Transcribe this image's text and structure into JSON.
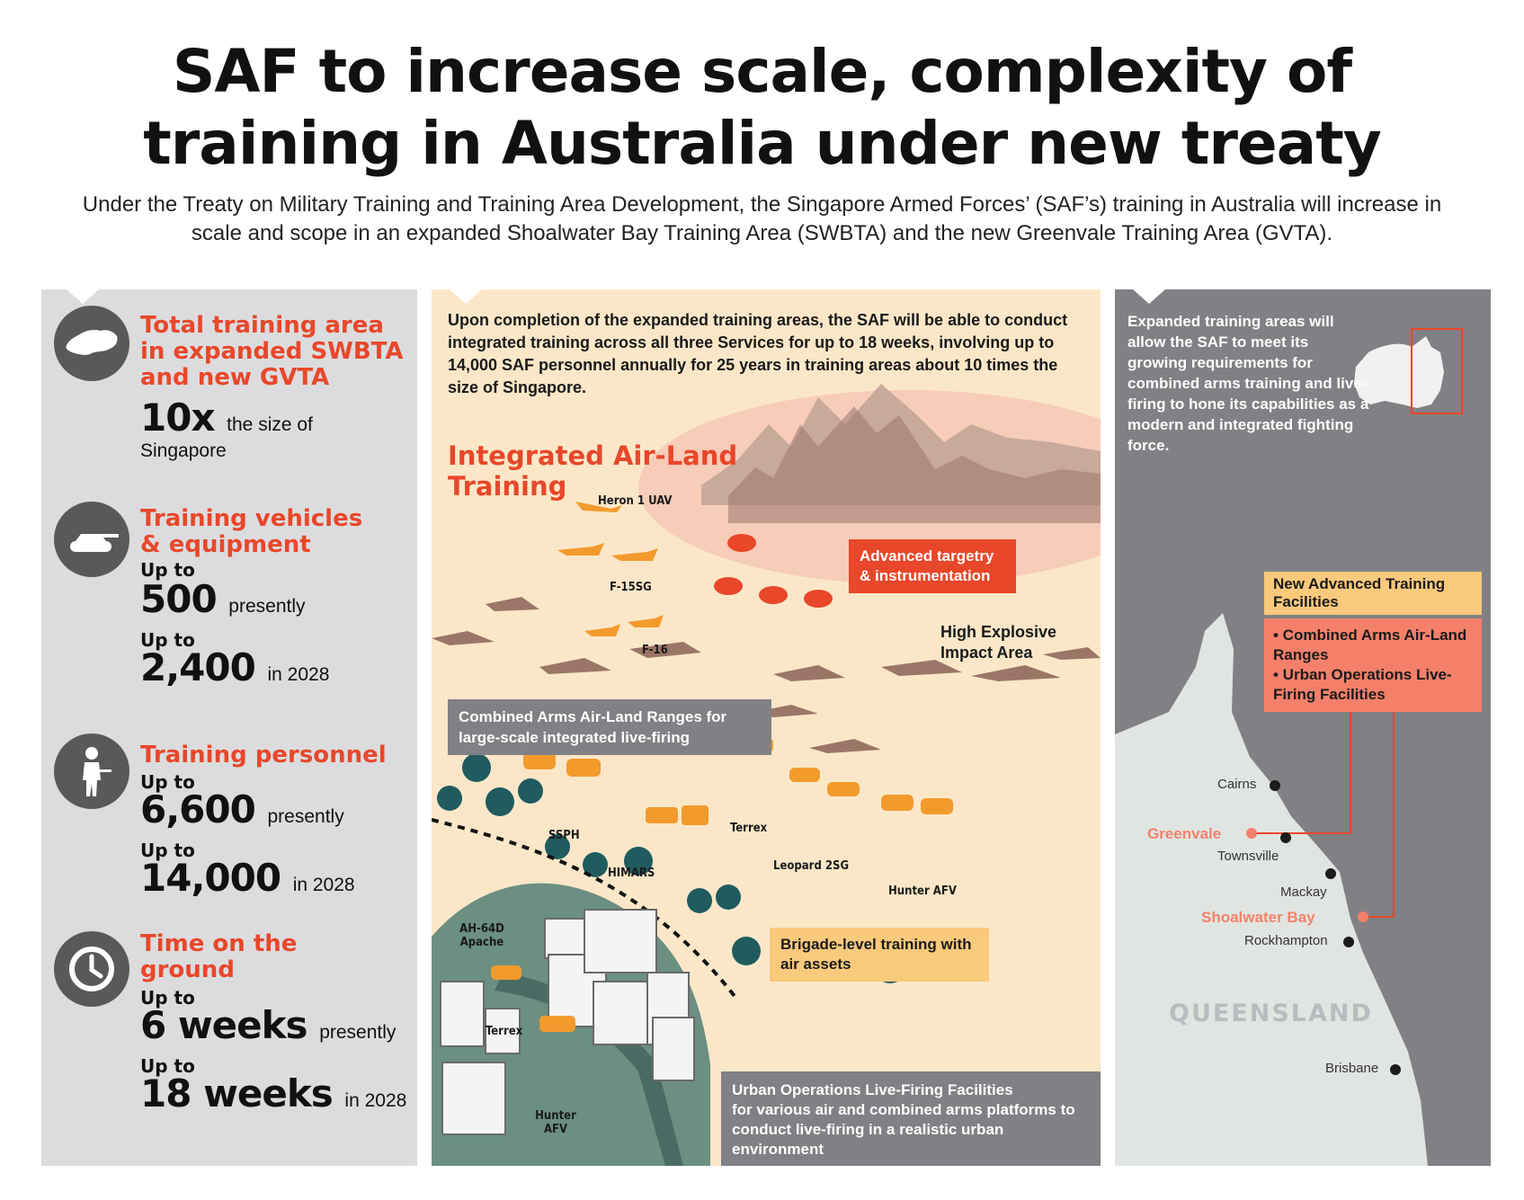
{
  "header": {
    "title_line1": "SAF to increase scale, complexity of",
    "title_line2": "training in Australia under new treaty",
    "subtitle": "Under the Treaty on Military Training and Training Area Development, the Singapore Armed Forces’ (SAF’s) training in Australia will increase in scale and scope in an expanded Shoalwater Bay Training Area (SWBTA) and the new Greenvale Training Area (GVTA)."
  },
  "stats": {
    "area": {
      "heading": "Total training area in expanded SWBTA and new GVTA",
      "value": "10x",
      "suffix": "the size of",
      "line2": "Singapore",
      "icon": "singapore-map-icon"
    },
    "vehicles": {
      "heading": "Training vehicles & equipment",
      "upto1": "Up to",
      "value1": "500",
      "suffix1": "presently",
      "upto2": "Up to",
      "value2": "2,400",
      "suffix2": "in 2028",
      "icon": "tank-icon"
    },
    "personnel": {
      "heading": "Training personnel",
      "upto1": "Up to",
      "value1": "6,600",
      "suffix1": "presently",
      "upto2": "Up to",
      "value2": "14,000",
      "suffix2": "in 2028",
      "icon": "soldier-icon"
    },
    "time": {
      "heading": "Time on the ground",
      "upto1": "Up to",
      "value1": "6 weeks",
      "suffix1": "presently",
      "upto2": "Up to",
      "value2": "18 weeks",
      "suffix2": "in 2028",
      "icon": "clock-icon"
    }
  },
  "middle": {
    "intro": "Upon completion of the expanded training areas, the SAF will be able to conduct integrated training across all three Services for up to 18 weeks, involving up to 14,000 SAF personnel annually for 25 years in training areas about 10 times the size of Singapore.",
    "heading": "Integrated Air-Land Training",
    "labels": {
      "heron": "Heron 1 UAV",
      "f15": "F-15SG",
      "f16": "F-16",
      "ssph": "SSPH",
      "himars": "HIMARS",
      "terrex1": "Terrex",
      "leopard": "Leopard 2SG",
      "hunter1": "Hunter AFV",
      "apache": "AH-64D Apache",
      "terrex2": "Terrex",
      "hunter2": "Hunter AFV",
      "hei": "High Explosive Impact Area"
    },
    "targetry_box": "Advanced targetry & instrumentation",
    "ranges_box": "Combined Arms Air-Land Ranges for large-scale integrated live-firing",
    "brigade_box": "Brigade-level training with air assets",
    "urban_box_title": "Urban Operations Live-Firing Facilities",
    "urban_box_body": "for various air and combined arms platforms to conduct live-firing in a realistic urban environment"
  },
  "right": {
    "intro": "Expanded training areas will allow the SAF to meet its growing requirements for combined arms training and live-firing to hone its capabilities as a modern and integrated fighting force.",
    "facilities_title": "New Advanced Training Facilities",
    "facility1": "• Combined Arms Air-Land Ranges",
    "facility2": "• Urban Operations Live-Firing Facilities",
    "region": "QUEENSLAND",
    "cities": {
      "cairns": "Cairns",
      "greenvale": "Greenvale",
      "townsville": "Townsville",
      "mackay": "Mackay",
      "shoalwater": "Shoalwater Bay",
      "rockhampton": "Rockhampton",
      "brisbane": "Brisbane"
    }
  },
  "colors": {
    "accent": "#e8472a",
    "panel_grey": "#dcdcde",
    "panel_cream": "#fbe7c8",
    "map_grey": "#818084",
    "facility_orange": "#f4806a",
    "facility_yellow": "#f9c97c"
  }
}
